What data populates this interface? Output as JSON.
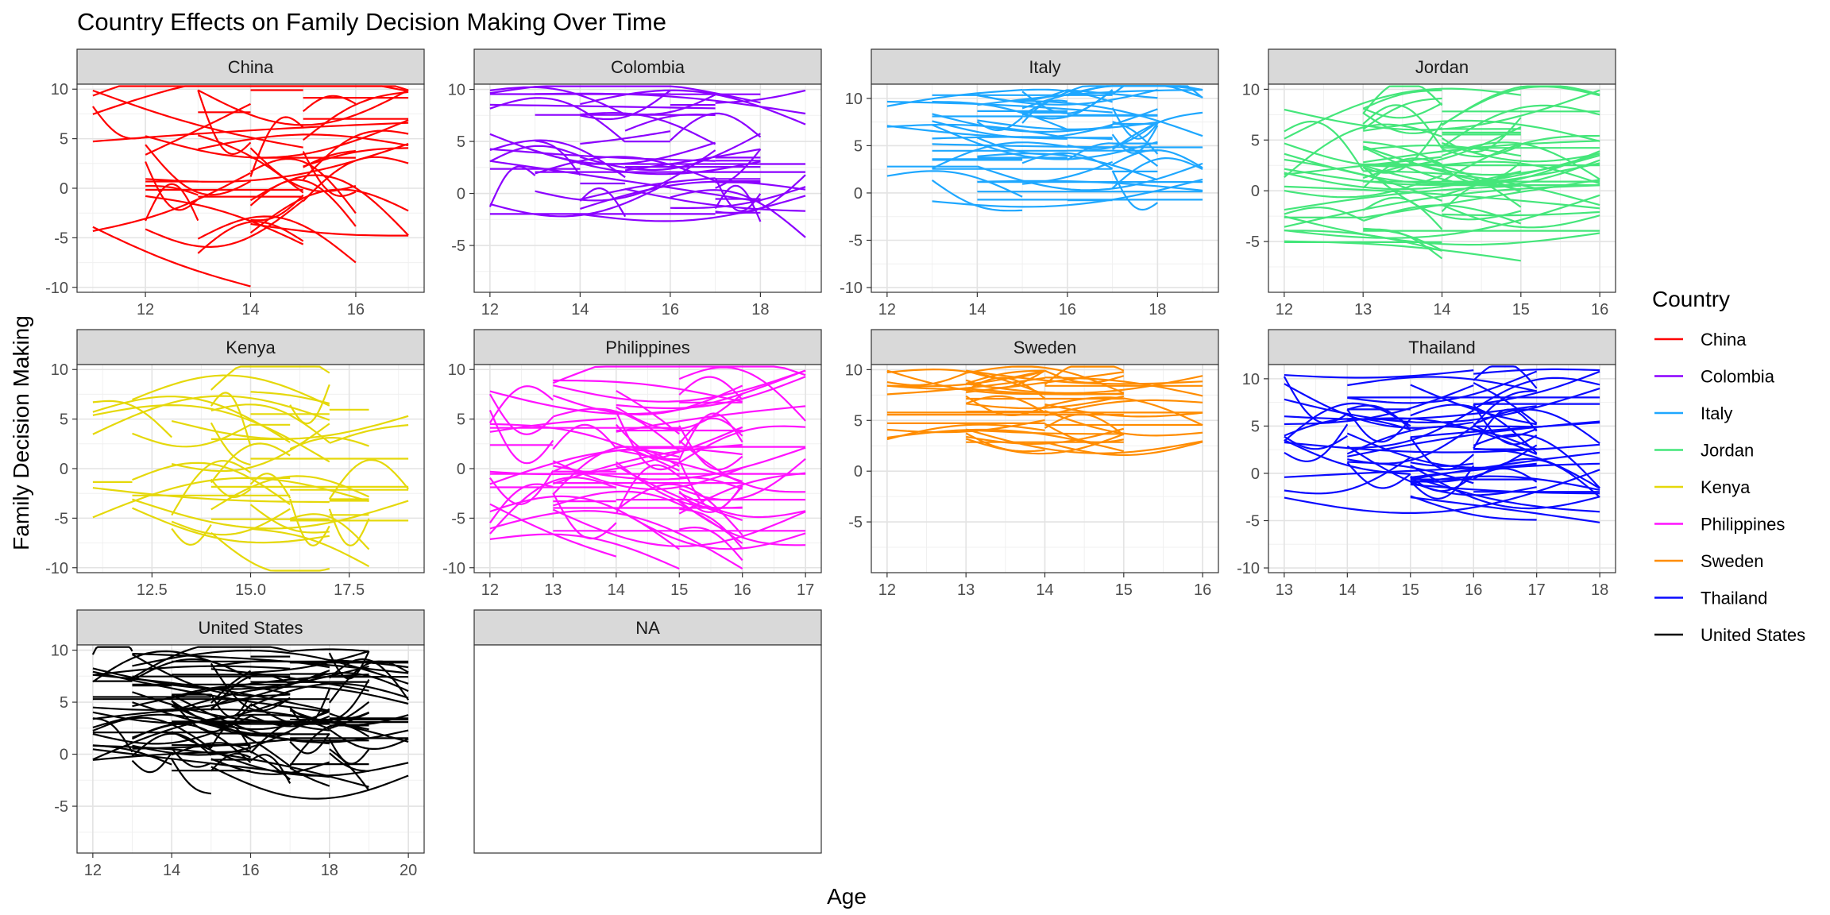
{
  "chart_data": {
    "type": "line",
    "title": "Country Effects on Family Decision Making Over Time",
    "xlabel": "Age",
    "ylabel": "Family Decision Making",
    "grid": true,
    "legend": {
      "title": "Country",
      "placement": "right",
      "entries": [
        {
          "name": "China",
          "color": "#ff0000"
        },
        {
          "name": "Colombia",
          "color": "#8b00ff"
        },
        {
          "name": "Italy",
          "color": "#1ea7ff"
        },
        {
          "name": "Jordan",
          "color": "#44e67a"
        },
        {
          "name": "Kenya",
          "color": "#e5d80a"
        },
        {
          "name": "Philippines",
          "color": "#ff12ff"
        },
        {
          "name": "Sweden",
          "color": "#ff8c00"
        },
        {
          "name": "Thailand",
          "color": "#0a0aff"
        },
        {
          "name": "United States",
          "color": "#000000"
        }
      ]
    },
    "panels": [
      {
        "name": "China",
        "color": "#ff0000",
        "xlim": [
          10.7,
          17.3
        ],
        "ylim": [
          -10.5,
          10.5
        ],
        "xticks": [
          12,
          14,
          16
        ],
        "xtick_labels": [
          "12",
          "14",
          "16"
        ],
        "yticks": [
          -10,
          -5,
          0,
          5,
          10
        ],
        "age_range": [
          11,
          17
        ],
        "n_lines": 45,
        "ycenter": 2,
        "yspread": 6
      },
      {
        "name": "Colombia",
        "color": "#8b00ff",
        "xlim": [
          11.65,
          19.35
        ],
        "ylim": [
          -9.5,
          10.5
        ],
        "xticks": [
          12,
          14,
          16,
          18
        ],
        "xtick_labels": [
          "12",
          "14",
          "16",
          "18"
        ],
        "yticks": [
          -5,
          0,
          5,
          10
        ],
        "age_range": [
          12,
          19
        ],
        "n_lines": 55,
        "ycenter": 4,
        "yspread": 4
      },
      {
        "name": "Italy",
        "color": "#1ea7ff",
        "xlim": [
          11.65,
          19.35
        ],
        "ylim": [
          -10.5,
          11.5
        ],
        "xticks": [
          12,
          14,
          16,
          18
        ],
        "xtick_labels": [
          "12",
          "14",
          "16",
          "18"
        ],
        "yticks": [
          -10,
          -5,
          0,
          5,
          10
        ],
        "age_range": [
          12,
          19
        ],
        "n_lines": 65,
        "ycenter": 5,
        "yspread": 4
      },
      {
        "name": "Jordan",
        "color": "#44e67a",
        "xlim": [
          11.8,
          16.2
        ],
        "ylim": [
          -10,
          10.5
        ],
        "xticks": [
          12,
          13,
          14,
          15,
          16
        ],
        "xtick_labels": [
          "12",
          "13",
          "14",
          "15",
          "16"
        ],
        "yticks": [
          -5,
          0,
          5,
          10
        ],
        "age_range": [
          12,
          16
        ],
        "n_lines": 70,
        "ycenter": 1.5,
        "yspread": 4.5
      },
      {
        "name": "Kenya",
        "color": "#e5d80a",
        "xlim": [
          10.6,
          19.4
        ],
        "ylim": [
          -10.5,
          10.5
        ],
        "xticks": [
          12.5,
          15,
          17.5
        ],
        "xtick_labels": [
          "12.5",
          "15.0",
          "17.5"
        ],
        "yticks": [
          -10,
          -5,
          0,
          5,
          10
        ],
        "age_range": [
          11,
          19
        ],
        "n_lines": 50,
        "ycenter": 1,
        "yspread": 5
      },
      {
        "name": "Philippines",
        "color": "#ff12ff",
        "xlim": [
          11.75,
          17.25
        ],
        "ylim": [
          -10.5,
          10.5
        ],
        "xticks": [
          12,
          13,
          14,
          15,
          16,
          17
        ],
        "xtick_labels": [
          "12",
          "13",
          "14",
          "15",
          "16",
          "17"
        ],
        "yticks": [
          -10,
          -5,
          0,
          5,
          10
        ],
        "age_range": [
          12,
          17
        ],
        "n_lines": 70,
        "ycenter": 1,
        "yspread": 5.5
      },
      {
        "name": "Sweden",
        "color": "#ff8c00",
        "xlim": [
          11.8,
          16.2
        ],
        "ylim": [
          -10,
          10.5
        ],
        "xticks": [
          12,
          13,
          14,
          15,
          16
        ],
        "xtick_labels": [
          "12",
          "13",
          "14",
          "15",
          "16"
        ],
        "yticks": [
          -5,
          0,
          5,
          10
        ],
        "age_range": [
          12,
          16
        ],
        "n_lines": 45,
        "ycenter": 6.5,
        "yspread": 2.5
      },
      {
        "name": "Thailand",
        "color": "#0a0aff",
        "xlim": [
          12.75,
          18.25
        ],
        "ylim": [
          -10.5,
          11.5
        ],
        "xticks": [
          13,
          14,
          15,
          16,
          17,
          18
        ],
        "xtick_labels": [
          "13",
          "14",
          "15",
          "16",
          "17",
          "18"
        ],
        "yticks": [
          -10,
          -5,
          0,
          5,
          10
        ],
        "age_range": [
          13,
          18
        ],
        "n_lines": 65,
        "ycenter": 4,
        "yspread": 4.5
      },
      {
        "name": "United States",
        "color": "#000000",
        "xlim": [
          11.6,
          20.4
        ],
        "ylim": [
          -9.5,
          10.5
        ],
        "xticks": [
          12,
          14,
          16,
          18,
          20
        ],
        "xtick_labels": [
          "12",
          "14",
          "16",
          "18",
          "20"
        ],
        "yticks": [
          -5,
          0,
          5,
          10
        ],
        "age_range": [
          12,
          20
        ],
        "n_lines": 110,
        "ycenter": 4,
        "yspread": 4
      },
      {
        "name": "NA",
        "color": "#000000",
        "empty": true
      }
    ]
  }
}
